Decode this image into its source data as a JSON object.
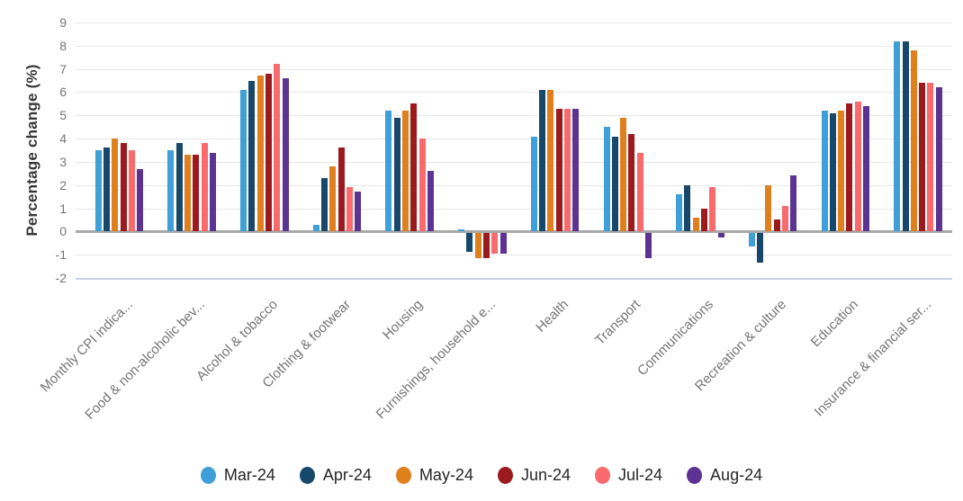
{
  "chart_data": {
    "type": "bar",
    "title": "",
    "xlabel": "",
    "ylabel": "Percentage change (%)",
    "ylim": [
      -2,
      9
    ],
    "yticks": [
      9,
      8,
      7,
      6,
      5,
      4,
      3,
      2,
      1,
      0,
      -1,
      -2
    ],
    "grid": true,
    "legend_position": "bottom",
    "categories": [
      "Monthly CPI indica...",
      "Food & non-alcoholic bev...",
      "Alcohol & tobacco",
      "Clothing & footwear",
      "Housing",
      "Furnishings, household e...",
      "Health",
      "Transport",
      "Communications",
      "Recreation & culture",
      "Education",
      "Insurance & financial ser..."
    ],
    "series": [
      {
        "name": "Mar-24",
        "color": "#3F9FD8",
        "values": [
          3.5,
          3.5,
          6.1,
          0.3,
          5.2,
          0.1,
          4.1,
          4.5,
          1.6,
          -0.6,
          5.2,
          8.2
        ]
      },
      {
        "name": "Apr-24",
        "color": "#17486C",
        "values": [
          3.6,
          3.8,
          6.5,
          2.3,
          4.9,
          -0.8,
          6.1,
          4.1,
          2.0,
          -1.3,
          5.1,
          8.2
        ]
      },
      {
        "name": "May-24",
        "color": "#DF7F1E",
        "values": [
          4.0,
          3.3,
          6.7,
          2.8,
          5.2,
          -1.1,
          6.1,
          4.9,
          0.6,
          2.0,
          5.2,
          7.8
        ]
      },
      {
        "name": "Jun-24",
        "color": "#9C1A1E",
        "values": [
          3.8,
          3.3,
          6.8,
          3.6,
          5.5,
          -1.1,
          5.3,
          4.2,
          1.0,
          0.5,
          5.5,
          6.4
        ]
      },
      {
        "name": "Jul-24",
        "color": "#F96A6C",
        "values": [
          3.5,
          3.8,
          7.2,
          1.9,
          4.0,
          -0.9,
          5.3,
          3.4,
          1.9,
          1.1,
          5.6,
          6.4
        ]
      },
      {
        "name": "Aug-24",
        "color": "#5C3292",
        "values": [
          2.7,
          3.4,
          6.6,
          1.7,
          2.6,
          -0.9,
          5.3,
          -1.1,
          -0.2,
          2.4,
          5.4,
          6.2
        ]
      }
    ],
    "colors": {
      "grid": "#E7E7E7",
      "zero_line": "#A8A8A8",
      "baseline": "#C7D3EA",
      "tick_text": "#757575",
      "category_text": "#757575",
      "axis_title_text": "#383838",
      "legend_text": "#262626",
      "background": "#FFFFFF"
    }
  }
}
